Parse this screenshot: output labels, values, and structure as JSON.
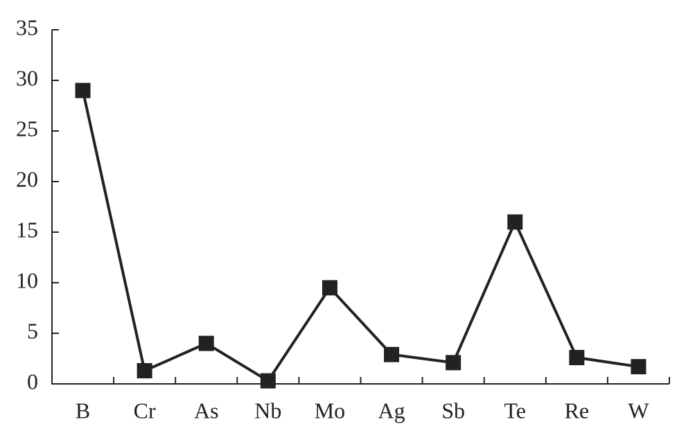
{
  "chart_data": {
    "type": "line",
    "categories": [
      "B",
      "Cr",
      "As",
      "Nb",
      "Mo",
      "Ag",
      "Sb",
      "Te",
      "Re",
      "W"
    ],
    "values": [
      29.0,
      1.3,
      4.0,
      0.3,
      9.5,
      2.9,
      2.1,
      16.0,
      2.6,
      1.7
    ],
    "color": "#222222",
    "ylim": [
      0,
      35
    ],
    "yticks": [
      0,
      5,
      10,
      15,
      20,
      25,
      30,
      35
    ],
    "grid": false
  }
}
